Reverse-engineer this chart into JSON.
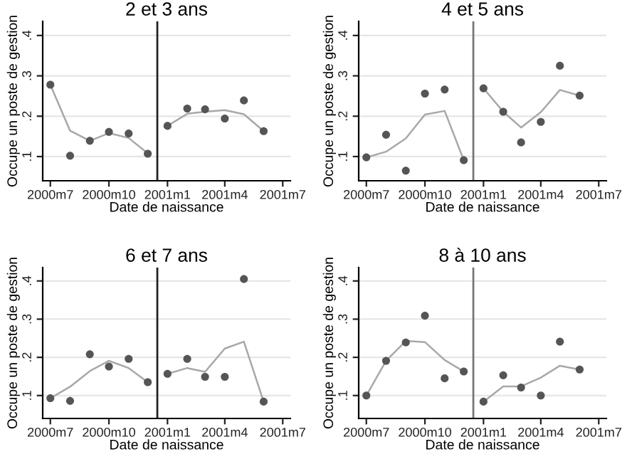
{
  "chart_data": [
    {
      "type": "scatter",
      "title": "2 et 3 ans",
      "xlabel": "Date de naissance",
      "ylabel": "Occupe un poste de gestion",
      "x": [
        "2000-07",
        "2000-08",
        "2000-09",
        "2000-10",
        "2000-11",
        "2000-12",
        "2001-01",
        "2001-02",
        "2001-03",
        "2001-04",
        "2001-05",
        "2001-06"
      ],
      "series": [
        {
          "color": "#555555",
          "marker": "circle",
          "values": [
            0.278,
            0.102,
            0.139,
            0.161,
            0.157,
            0.107,
            0.176,
            0.219,
            0.217,
            0.194,
            0.239,
            0.163
          ]
        },
        {
          "type": "line",
          "color": "#a8a8a8",
          "x": [
            "2000-07",
            "2000-08",
            "2000-09",
            "2000-10",
            "2000-11",
            "2000-12"
          ],
          "values": [
            0.278,
            0.164,
            0.139,
            0.158,
            0.146,
            0.108
          ]
        },
        {
          "type": "line",
          "color": "#a8a8a8",
          "x": [
            "2001-01",
            "2001-02",
            "2001-03",
            "2001-04",
            "2001-05",
            "2001-06"
          ],
          "values": [
            0.176,
            0.206,
            0.211,
            0.215,
            0.205,
            0.163
          ]
        }
      ],
      "ref_lines": [
        {
          "axis": "x",
          "value": "2000-12-16",
          "color": "#222222"
        }
      ],
      "xlim": [
        "2000-06-19",
        "2001-07-13"
      ],
      "ylim": [
        0.04,
        0.435
      ],
      "xticks": [
        {
          "value": "2000-07",
          "label": "2000m7"
        },
        {
          "value": "2000-10",
          "label": "2000m10"
        },
        {
          "value": "2001-01",
          "label": "2001m1"
        },
        {
          "value": "2001-04",
          "label": "2001m4"
        },
        {
          "value": "2001-07",
          "label": "2001m7"
        }
      ],
      "yticks": [
        {
          "value": 0.1,
          "label": ".1"
        },
        {
          "value": 0.2,
          "label": ".2"
        },
        {
          "value": 0.3,
          "label": ".3"
        },
        {
          "value": 0.4,
          "label": ".4"
        }
      ],
      "grid": "y"
    },
    {
      "type": "scatter",
      "title": "4 et 5 ans",
      "xlabel": "Date de naissance",
      "ylabel": "Occupe un poste de gestion",
      "x": [
        "2000-07",
        "2000-08",
        "2000-09",
        "2000-10",
        "2000-11",
        "2000-12",
        "2001-01",
        "2001-02",
        "2001-03",
        "2001-04",
        "2001-05",
        "2001-06"
      ],
      "series": [
        {
          "color": "#555555",
          "marker": "circle",
          "values": [
            0.098,
            0.154,
            0.065,
            0.256,
            0.266,
            0.091,
            0.269,
            0.211,
            0.135,
            0.186,
            0.325,
            0.251
          ]
        },
        {
          "type": "line",
          "color": "#a8a8a8",
          "x": [
            "2000-07",
            "2000-08",
            "2000-09",
            "2000-10",
            "2000-11",
            "2000-12"
          ],
          "values": [
            0.098,
            0.112,
            0.145,
            0.204,
            0.213,
            0.091
          ]
        },
        {
          "type": "line",
          "color": "#a8a8a8",
          "x": [
            "2001-01",
            "2001-02",
            "2001-03",
            "2001-04",
            "2001-05",
            "2001-06"
          ],
          "values": [
            0.269,
            0.211,
            0.172,
            0.21,
            0.265,
            0.251
          ]
        }
      ],
      "ref_lines": [
        {
          "axis": "x",
          "value": "2000-12-16",
          "color": "#777777"
        }
      ],
      "xlim": [
        "2000-06-19",
        "2001-07-13"
      ],
      "ylim": [
        0.04,
        0.435
      ],
      "xticks": [
        {
          "value": "2000-07",
          "label": "2000m7"
        },
        {
          "value": "2000-10",
          "label": "2000m10"
        },
        {
          "value": "2001-01",
          "label": "2001m1"
        },
        {
          "value": "2001-04",
          "label": "2001m4"
        },
        {
          "value": "2001-07",
          "label": "2001m7"
        }
      ],
      "yticks": [
        {
          "value": 0.1,
          "label": ".1"
        },
        {
          "value": 0.2,
          "label": ".2"
        },
        {
          "value": 0.3,
          "label": ".3"
        },
        {
          "value": 0.4,
          "label": ".4"
        }
      ],
      "grid": "y"
    },
    {
      "type": "scatter",
      "title": "6 et 7 ans",
      "xlabel": "Date de naissance",
      "ylabel": "Occupe un poste de gestion",
      "x": [
        "2000-07",
        "2000-08",
        "2000-09",
        "2000-10",
        "2000-11",
        "2000-12",
        "2001-01",
        "2001-02",
        "2001-03",
        "2001-04",
        "2001-05",
        "2001-06"
      ],
      "series": [
        {
          "color": "#555555",
          "marker": "circle",
          "values": [
            0.093,
            0.086,
            0.208,
            0.176,
            0.196,
            0.135,
            0.157,
            0.196,
            0.149,
            0.149,
            0.405,
            0.084
          ]
        },
        {
          "type": "line",
          "color": "#a8a8a8",
          "x": [
            "2000-07",
            "2000-08",
            "2000-09",
            "2000-10",
            "2000-11",
            "2000-12"
          ],
          "values": [
            0.093,
            0.123,
            0.164,
            0.191,
            0.172,
            0.135
          ]
        },
        {
          "type": "line",
          "color": "#a8a8a8",
          "x": [
            "2001-01",
            "2001-02",
            "2001-03",
            "2001-04",
            "2001-05",
            "2001-06"
          ],
          "values": [
            0.157,
            0.172,
            0.162,
            0.223,
            0.241,
            0.084
          ]
        }
      ],
      "ref_lines": [
        {
          "axis": "x",
          "value": "2000-12-16",
          "color": "#222222"
        }
      ],
      "xlim": [
        "2000-06-19",
        "2001-07-13"
      ],
      "ylim": [
        0.04,
        0.435
      ],
      "xticks": [
        {
          "value": "2000-07",
          "label": "2000m7"
        },
        {
          "value": "2000-10",
          "label": "2000m10"
        },
        {
          "value": "2001-01",
          "label": "2001m1"
        },
        {
          "value": "2001-04",
          "label": "2001m4"
        },
        {
          "value": "2001-07",
          "label": "2001m7"
        }
      ],
      "yticks": [
        {
          "value": 0.1,
          "label": ".1"
        },
        {
          "value": 0.2,
          "label": ".2"
        },
        {
          "value": 0.3,
          "label": ".3"
        },
        {
          "value": 0.4,
          "label": ".4"
        }
      ],
      "grid": "y"
    },
    {
      "type": "scatter",
      "title": "8 à 10 ans",
      "xlabel": "Date de naissance",
      "ylabel": "Occupe un poste de gestion",
      "x": [
        "2000-07",
        "2000-08",
        "2000-09",
        "2000-10",
        "2000-11",
        "2000-12",
        "2001-01",
        "2001-02",
        "2001-03",
        "2001-04",
        "2001-05",
        "2001-06"
      ],
      "series": [
        {
          "color": "#555555",
          "marker": "circle",
          "values": [
            0.1,
            0.191,
            0.239,
            0.309,
            0.145,
            0.163,
            0.084,
            0.153,
            0.121,
            0.1,
            0.241,
            0.168
          ]
        },
        {
          "type": "line",
          "color": "#a8a8a8",
          "x": [
            "2000-07",
            "2000-08",
            "2000-09",
            "2000-10",
            "2000-11",
            "2000-12"
          ],
          "values": [
            0.1,
            0.191,
            0.243,
            0.24,
            0.193,
            0.163
          ]
        },
        {
          "type": "line",
          "color": "#a8a8a8",
          "x": [
            "2001-01",
            "2001-02",
            "2001-03",
            "2001-04",
            "2001-05",
            "2001-06"
          ],
          "values": [
            0.084,
            0.124,
            0.124,
            0.147,
            0.178,
            0.168
          ]
        }
      ],
      "ref_lines": [
        {
          "axis": "x",
          "value": "2000-12-16",
          "color": "#777777"
        }
      ],
      "xlim": [
        "2000-06-19",
        "2001-07-13"
      ],
      "ylim": [
        0.04,
        0.435
      ],
      "xticks": [
        {
          "value": "2000-07",
          "label": "2000m7"
        },
        {
          "value": "2000-10",
          "label": "2000m10"
        },
        {
          "value": "2001-01",
          "label": "2001m1"
        },
        {
          "value": "2001-04",
          "label": "2001m4"
        },
        {
          "value": "2001-07",
          "label": "2001m7"
        }
      ],
      "yticks": [
        {
          "value": 0.1,
          "label": ".1"
        },
        {
          "value": 0.2,
          "label": ".2"
        },
        {
          "value": 0.3,
          "label": ".3"
        },
        {
          "value": 0.4,
          "label": ".4"
        }
      ],
      "grid": "y"
    }
  ]
}
